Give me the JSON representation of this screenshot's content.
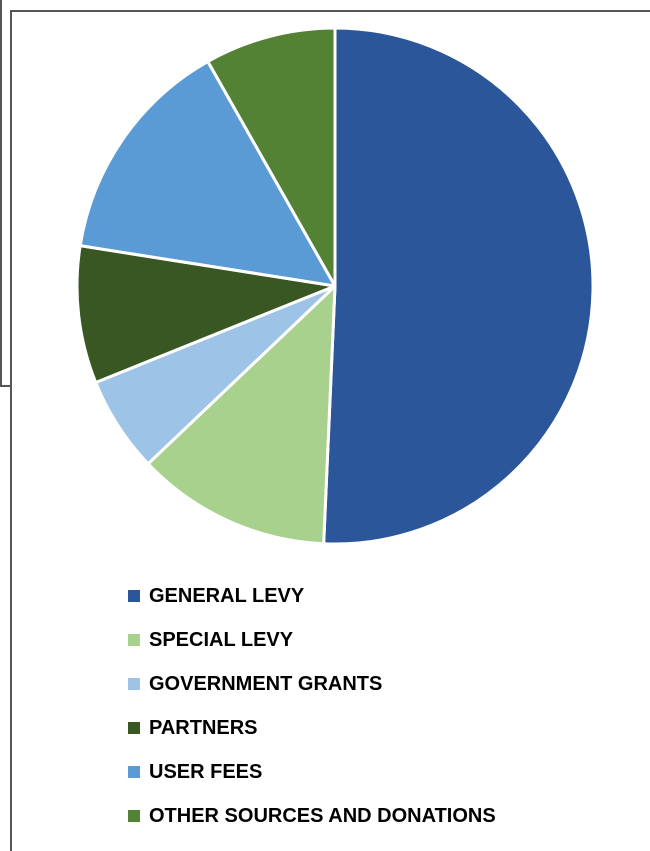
{
  "chart_data": {
    "type": "pie",
    "slices": [
      {
        "label": "GENERAL LEVY",
        "value": 50.7,
        "color": "#2B579A"
      },
      {
        "label": "SPECIAL LEVY",
        "value": 12.2,
        "color": "#A9D18E"
      },
      {
        "label": "GOVERNMENT GRANTS",
        "value": 6.0,
        "color": "#9DC3E6"
      },
      {
        "label": "PARTNERS",
        "value": 8.6,
        "color": "#385723"
      },
      {
        "label": "USER FEES",
        "value": 14.3,
        "color": "#5B9BD5"
      },
      {
        "label": "OTHER SOURCES AND DONATIONS",
        "value": 8.2,
        "color": "#548235"
      }
    ],
    "start_angle_deg": 0,
    "direction": "clockwise",
    "legend_position": "bottom"
  }
}
